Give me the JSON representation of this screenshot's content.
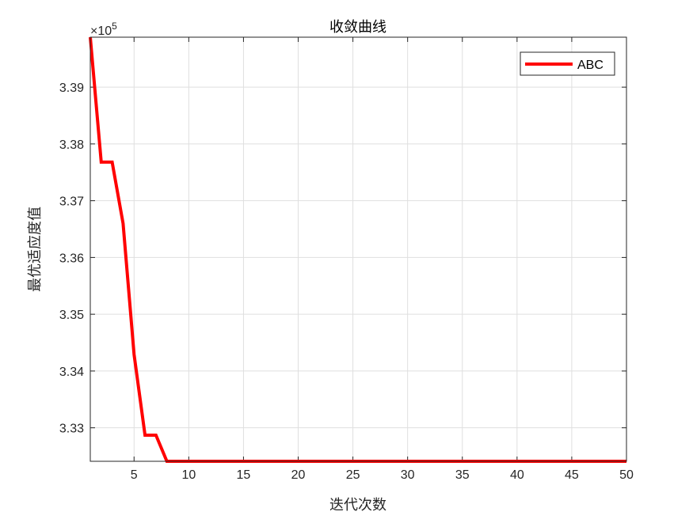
{
  "chart_data": {
    "type": "line",
    "title": "收敛曲线",
    "xlabel": "迭代次数",
    "ylabel": "最优适应度值",
    "y_exponent_label": "×10",
    "y_exponent": "5",
    "xlim": [
      1,
      50
    ],
    "ylim": [
      332410,
      339880
    ],
    "xticks": [
      5,
      10,
      15,
      20,
      25,
      30,
      35,
      40,
      45,
      50
    ],
    "xtick_labels": [
      "5",
      "10",
      "15",
      "20",
      "25",
      "30",
      "35",
      "40",
      "45",
      "50"
    ],
    "yticks": [
      333000,
      334000,
      335000,
      336000,
      337000,
      338000,
      339000
    ],
    "ytick_labels": [
      "3.33",
      "3.34",
      "3.35",
      "3.36",
      "3.37",
      "3.38",
      "3.39"
    ],
    "grid": true,
    "legend": "top-right",
    "series": [
      {
        "name": "ABC",
        "color": "#ff0000",
        "x": [
          1,
          2,
          3,
          4,
          5,
          6,
          7,
          8,
          9,
          10,
          11,
          12,
          13,
          14,
          15,
          16,
          17,
          18,
          19,
          20,
          21,
          22,
          23,
          24,
          25,
          26,
          27,
          28,
          29,
          30,
          31,
          32,
          33,
          34,
          35,
          36,
          37,
          38,
          39,
          40,
          41,
          42,
          43,
          44,
          45,
          46,
          47,
          48,
          49,
          50
        ],
        "y": [
          339880,
          337680,
          337680,
          336600,
          334290,
          332870,
          332870,
          332410,
          332410,
          332410,
          332410,
          332410,
          332410,
          332410,
          332410,
          332410,
          332410,
          332410,
          332410,
          332410,
          332410,
          332410,
          332410,
          332410,
          332410,
          332410,
          332410,
          332410,
          332410,
          332410,
          332410,
          332410,
          332410,
          332410,
          332410,
          332410,
          332410,
          332410,
          332410,
          332410,
          332410,
          332410,
          332410,
          332410,
          332410,
          332410,
          332410,
          332410,
          332410,
          332410
        ]
      }
    ]
  }
}
